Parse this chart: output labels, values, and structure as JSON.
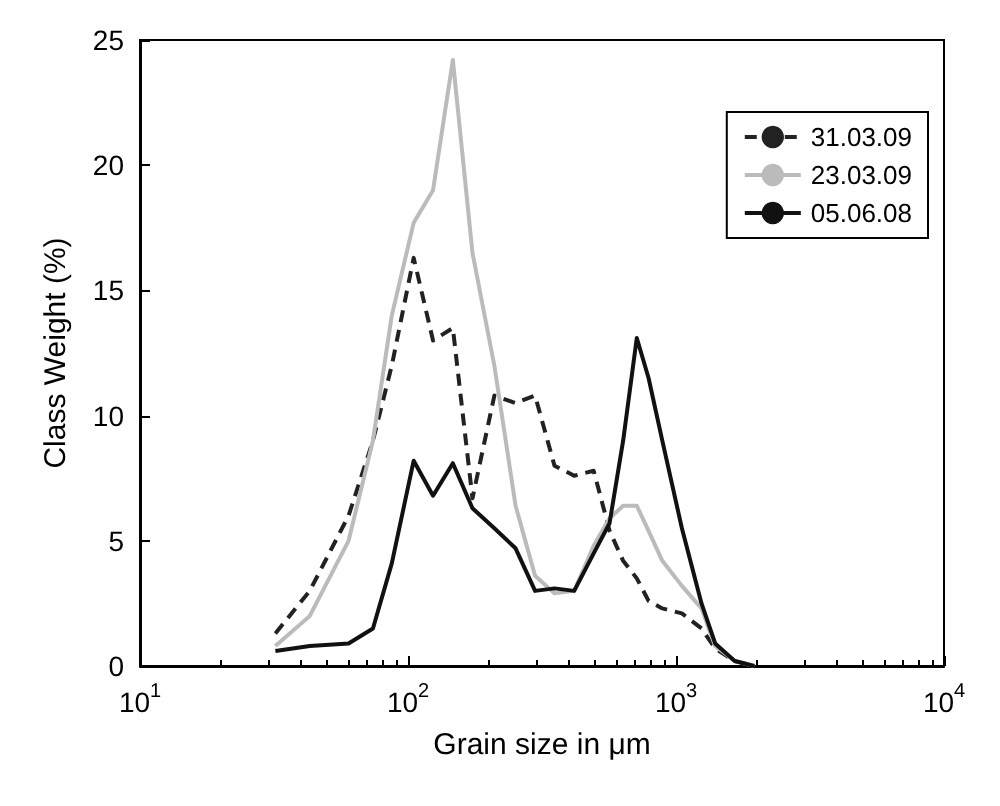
{
  "chart_data": {
    "type": "line",
    "xlabel": "Grain size in μm",
    "ylabel": "Class Weight (%)",
    "x": [
      32,
      43,
      60,
      74,
      87,
      105,
      124,
      147,
      174,
      210,
      252,
      298,
      352,
      417,
      493,
      565,
      635,
      714,
      790,
      889,
      1052,
      1245,
      1400,
      1656,
      1959
    ],
    "series": [
      {
        "name": "31.03.09",
        "color": "#222222",
        "line_style": "dashed",
        "values": [
          1.3,
          3,
          6,
          9,
          12,
          16.3,
          13,
          13.5,
          6.7,
          10.8,
          10.5,
          10.8,
          8,
          7.6,
          7.8,
          5.4,
          4.2,
          3.5,
          2.6,
          2.3,
          2.1,
          1.5,
          0.7,
          0.2,
          0
        ]
      },
      {
        "name": "23.03.09",
        "color": "#bbbbbb",
        "line_style": "solid",
        "values": [
          0.8,
          2,
          5,
          9,
          14,
          17.7,
          19,
          24.2,
          16.5,
          12,
          6.4,
          3.6,
          2.9,
          3,
          4.8,
          5.9,
          6.4,
          6.4,
          5.4,
          4.2,
          3.2,
          2.3,
          0.8,
          0.2,
          0
        ]
      },
      {
        "name": "05.06.08",
        "color": "#111111",
        "line_style": "solid",
        "values": [
          0.6,
          0.8,
          0.9,
          1.5,
          4.1,
          8.2,
          6.8,
          8.1,
          6.3,
          5.5,
          4.7,
          3,
          3.1,
          3,
          4.5,
          5.7,
          9,
          13.1,
          11.5,
          9,
          5.5,
          2.5,
          0.9,
          0.2,
          0
        ]
      }
    ],
    "xlim": [
      10,
      10000
    ],
    "xticks": [
      {
        "value": 10,
        "label": "10$^{1}$"
      },
      {
        "value": 100,
        "label": "10$^{2}$"
      },
      {
        "value": 1000,
        "label": "10$^{3}$"
      },
      {
        "value": 10000,
        "label": "10$^{4}$"
      }
    ],
    "ylim": [
      0,
      25
    ],
    "yticks": [
      0,
      5,
      10,
      15,
      20,
      25
    ],
    "log": "x",
    "grid": false,
    "legend": "top right",
    "marker": "none"
  }
}
